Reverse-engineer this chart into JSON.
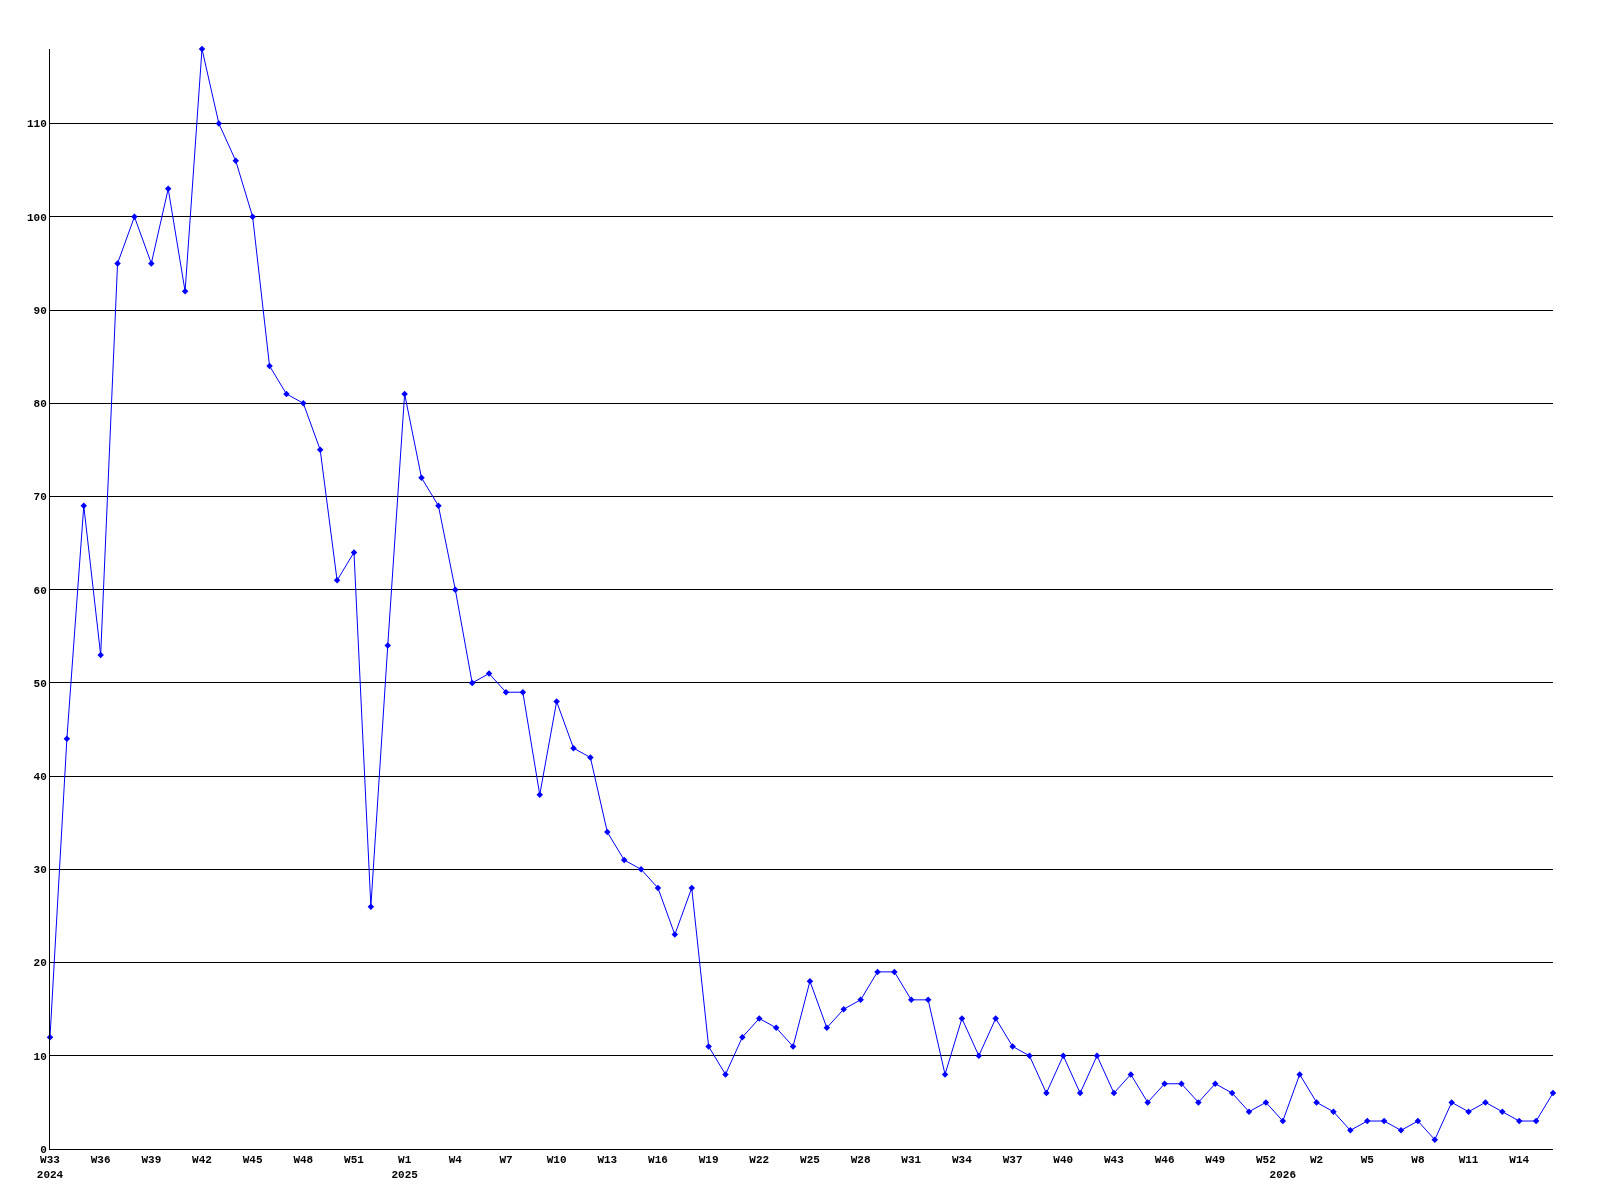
{
  "chart_data": {
    "type": "line",
    "categories": [
      "W33\n2024",
      null,
      null,
      "W36",
      null,
      null,
      "W39",
      null,
      null,
      "W42",
      null,
      null,
      "W45",
      null,
      null,
      "W48",
      null,
      null,
      "W51",
      null,
      null,
      "W1\n2025",
      null,
      null,
      "W4",
      null,
      null,
      "W7",
      null,
      null,
      "W10",
      null,
      null,
      "W13",
      null,
      null,
      "W16",
      null,
      null,
      "W19",
      null,
      null,
      "W22",
      null,
      null,
      "W25",
      null,
      null,
      "W28",
      null,
      null,
      "W31",
      null,
      null,
      "W34",
      null,
      null,
      "W37",
      null,
      null,
      "W40",
      null,
      null,
      "W43",
      null,
      null,
      "W46",
      null,
      null,
      "W49",
      null,
      null,
      "W52",
      "\n2026",
      null,
      "W2",
      null,
      null,
      "W5",
      null,
      null,
      "W8",
      null,
      null,
      "W11",
      null,
      null,
      "W14",
      null,
      null
    ],
    "series": [
      {
        "color": "#0000ff",
        "values": [
          12,
          44,
          69,
          53,
          95,
          100,
          95,
          103,
          92,
          118,
          110,
          106,
          100,
          84,
          81,
          80,
          75,
          61,
          64,
          26,
          54,
          81,
          72,
          69,
          60,
          50,
          51,
          49,
          49,
          38,
          48,
          43,
          42,
          34,
          31,
          30,
          28,
          23,
          28,
          11,
          8,
          12,
          14,
          13,
          11,
          18,
          13,
          15,
          16,
          19,
          19,
          16,
          16,
          8,
          14,
          10,
          14,
          11,
          10,
          6,
          10,
          6,
          10,
          6,
          8,
          5,
          7,
          7,
          5,
          7,
          6,
          4,
          5,
          3,
          8,
          5,
          4,
          2,
          3,
          3,
          2,
          3,
          1,
          5,
          4,
          5,
          4,
          3,
          3,
          6
        ]
      }
    ],
    "ylim": [
      0,
      118
    ],
    "yticks": [
      0,
      10,
      20,
      30,
      40,
      50,
      60,
      70,
      80,
      90,
      100,
      110
    ],
    "grid": "y",
    "marker": "diamond",
    "line_style": "solid"
  }
}
